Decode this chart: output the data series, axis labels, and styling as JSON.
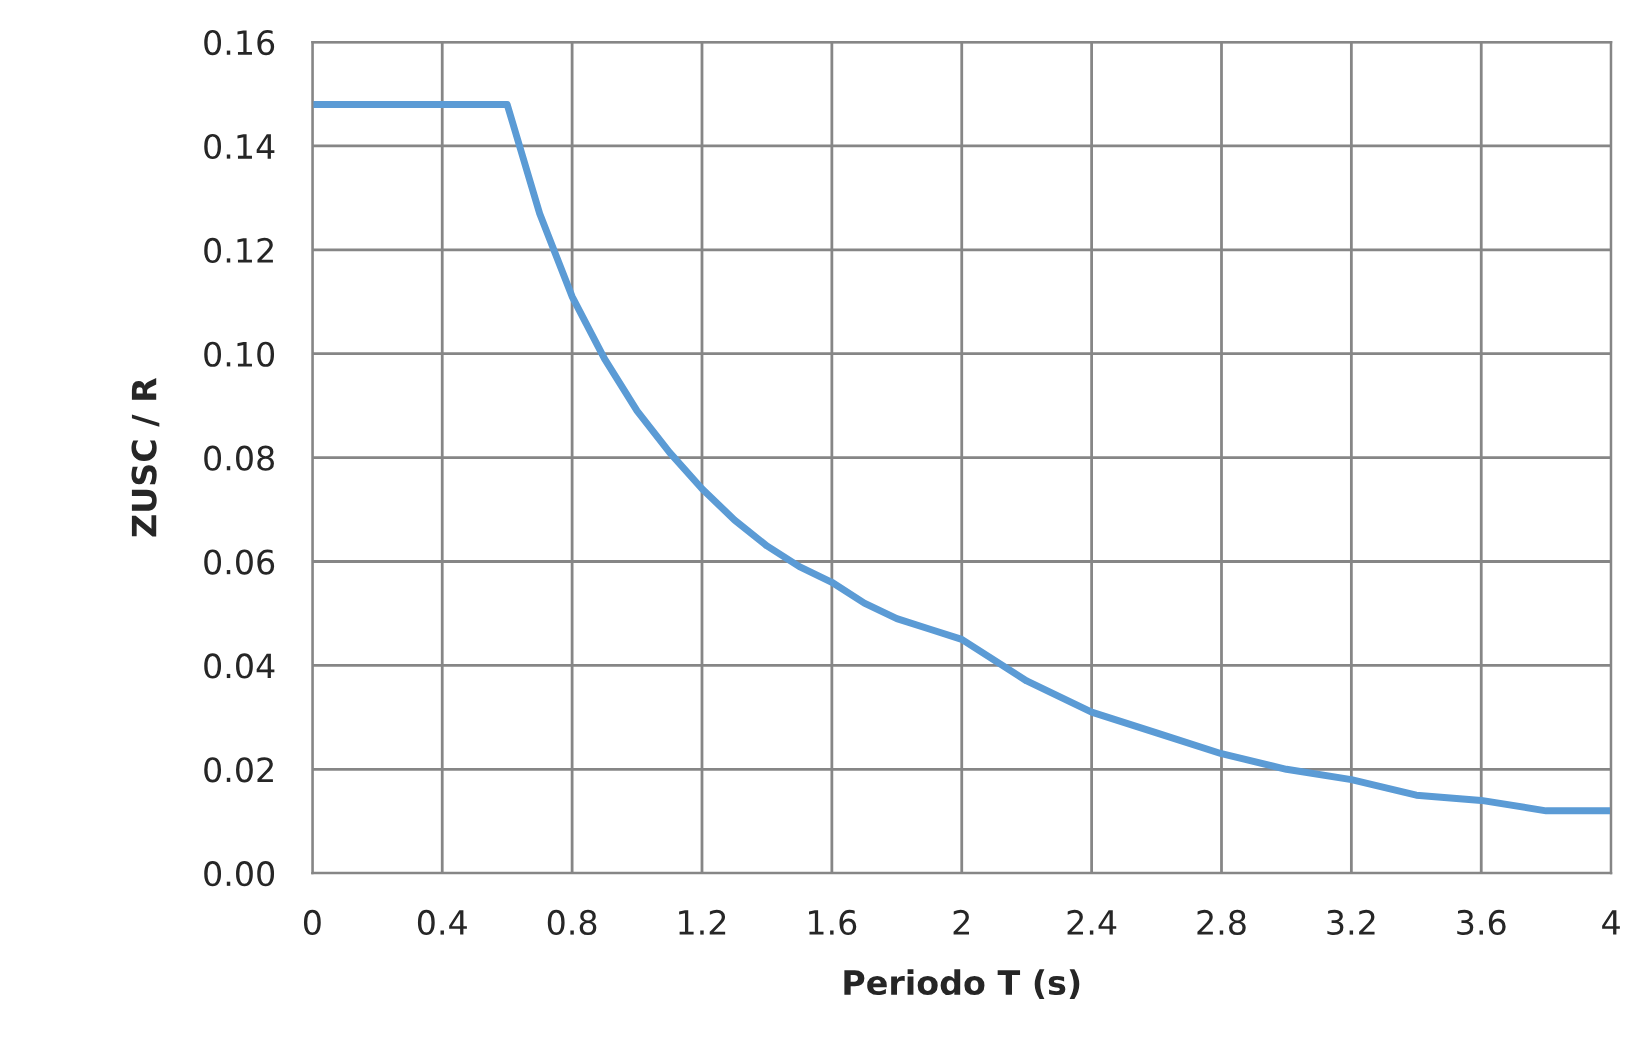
{
  "chart_data": {
    "type": "line",
    "xlabel": "Periodo T (s)",
    "ylabel": "ZUSC / R",
    "x": [
      0,
      0.6,
      0.7,
      0.8,
      0.9,
      1.0,
      1.1,
      1.2,
      1.3,
      1.4,
      1.5,
      1.6,
      1.7,
      1.8,
      1.9,
      2.0,
      2.2,
      2.4,
      2.6,
      2.8,
      3.0,
      3.2,
      3.4,
      3.6,
      3.8,
      4.0
    ],
    "series": [
      {
        "color": "#5b9bd5",
        "values": [
          0.148,
          0.148,
          0.127,
          0.111,
          0.099,
          0.089,
          0.081,
          0.074,
          0.068,
          0.063,
          0.059,
          0.056,
          0.052,
          0.049,
          0.047,
          0.045,
          0.037,
          0.031,
          0.027,
          0.023,
          0.02,
          0.018,
          0.015,
          0.014,
          0.012,
          0.012
        ]
      }
    ],
    "xlim": [
      0,
      4
    ],
    "xticks": [
      0,
      0.4,
      0.8,
      1.2,
      1.6,
      2,
      2.4,
      2.8,
      3.2,
      3.6,
      4
    ],
    "ylim": [
      0,
      0.16
    ],
    "yticks": [
      {
        "value": 0,
        "label": "0.00"
      },
      {
        "value": 0.02,
        "label": "0.02"
      },
      {
        "value": 0.04,
        "label": "0.04"
      },
      {
        "value": 0.06,
        "label": "0.06"
      },
      {
        "value": 0.08,
        "label": "0.08"
      },
      {
        "value": 0.1,
        "label": "0.10"
      },
      {
        "value": 0.12,
        "label": "0.12"
      },
      {
        "value": 0.14,
        "label": "0.14"
      },
      {
        "value": 0.16,
        "label": "0.16"
      }
    ],
    "grid": true,
    "marker": "none",
    "line_style": "solid"
  }
}
